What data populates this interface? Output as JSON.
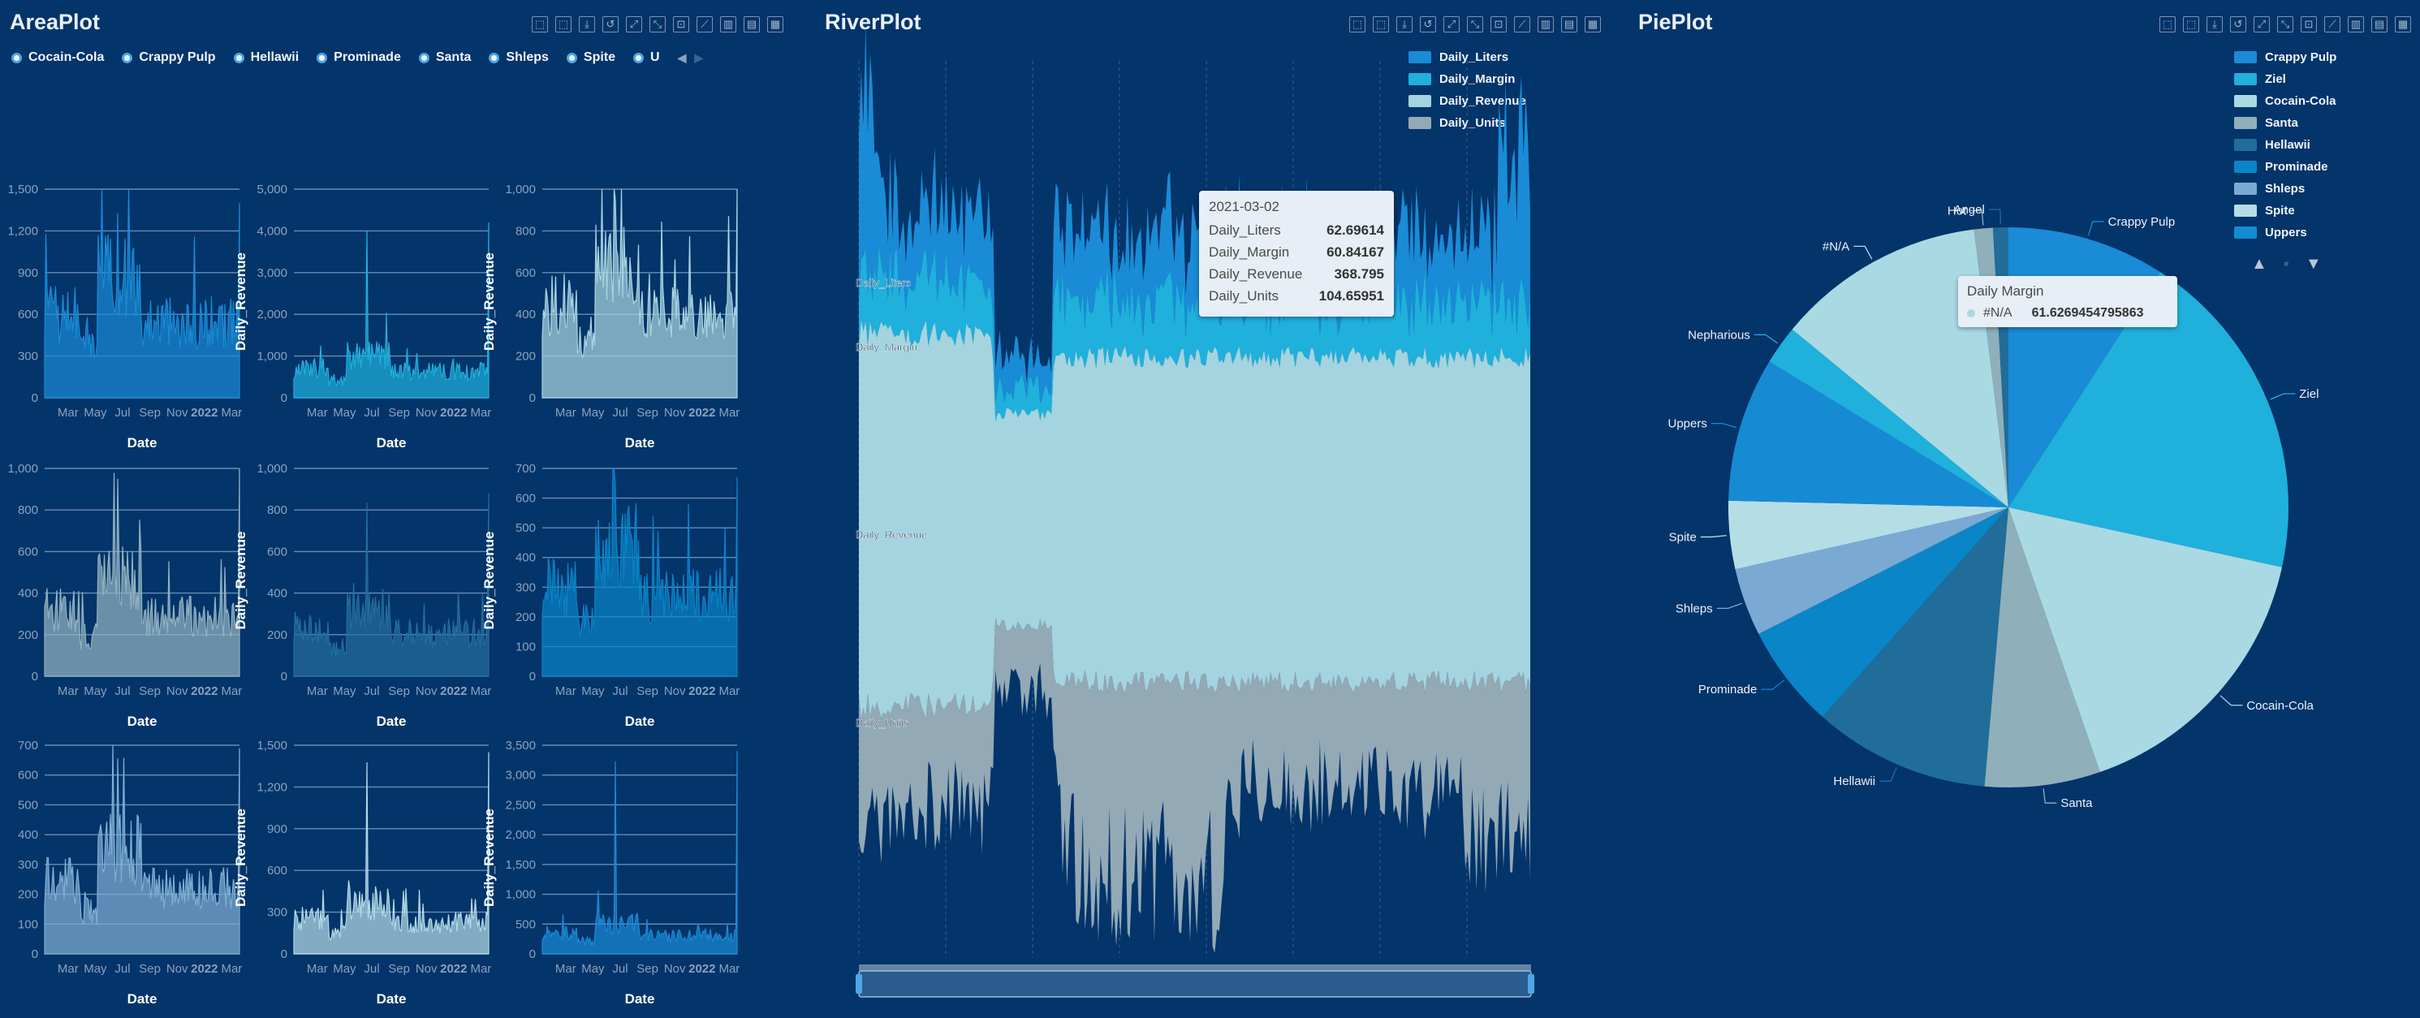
{
  "toolbar_icons": [
    "brush-rect-icon",
    "brush-polygon-icon",
    "save-icon",
    "restore-icon",
    "zoom-icon",
    "zoom-reset-icon",
    "select-icon",
    "line-icon",
    "bar-icon",
    "stack-icon",
    "tiled-icon"
  ],
  "area": {
    "title": "AreaPlot",
    "legend": [
      "Cocain-Cola",
      "Crappy Pulp",
      "Hellawii",
      "Prominade",
      "Santa",
      "Shleps",
      "Spite",
      "U"
    ],
    "xlabel": "Date",
    "ylabel": "Daily_Revenue",
    "xticks": [
      "Mar",
      "May",
      "Jul",
      "Sep",
      "Nov",
      "2022",
      "Mar"
    ],
    "charts": [
      {
        "yticks": [
          "0",
          "300",
          "600",
          "900",
          "1,200",
          "1,500"
        ],
        "ymax": 1500,
        "color": "#1a8bd6",
        "peak": 1400,
        "base": 600
      },
      {
        "yticks": [
          "0",
          "1,000",
          "2,000",
          "3,000",
          "4,000",
          "5,000"
        ],
        "ymax": 5000,
        "color": "#1fb0dc",
        "peak": 4200,
        "base": 700
      },
      {
        "yticks": [
          "0",
          "200",
          "400",
          "600",
          "800",
          "1,000"
        ],
        "ymax": 1000,
        "color": "#a9d6e1",
        "peak": 1000,
        "base": 450
      },
      {
        "yticks": [
          "0",
          "200",
          "400",
          "600",
          "800",
          "1,000"
        ],
        "ymax": 1000,
        "color": "#93b3c0",
        "peak": 1000,
        "base": 320
      },
      {
        "yticks": [
          "0",
          "200",
          "400",
          "600",
          "800",
          "1,000"
        ],
        "ymax": 1000,
        "color": "#246e9c",
        "peak": 880,
        "base": 230
      },
      {
        "yticks": [
          "0",
          "100",
          "200",
          "300",
          "400",
          "500",
          "600",
          "700"
        ],
        "ymax": 700,
        "color": "#0a84c8",
        "peak": 670,
        "base": 300
      },
      {
        "yticks": [
          "0",
          "100",
          "200",
          "300",
          "400",
          "500",
          "600",
          "700"
        ],
        "ymax": 700,
        "color": "#7fafd4",
        "peak": 690,
        "base": 240
      },
      {
        "yticks": [
          "0",
          "300",
          "600",
          "900",
          "1,200",
          "1,500"
        ],
        "ymax": 1500,
        "color": "#b3dbe6",
        "peak": 1450,
        "base": 250
      },
      {
        "yticks": [
          "0",
          "500",
          "1,000",
          "1,500",
          "2,000",
          "2,500",
          "3,000",
          "3,500"
        ],
        "ymax": 3500,
        "color": "#1a8bd6",
        "peak": 3400,
        "base": 350
      }
    ]
  },
  "river": {
    "title": "RiverPlot",
    "legend": [
      "Daily_Liters",
      "Daily_Margin",
      "Daily_Revenue",
      "Daily_Units"
    ],
    "colors": [
      "#1a8bd6",
      "#1fb0dc",
      "#a3d4df",
      "#93a9b5"
    ],
    "series_labels": [
      "Daily_Liters",
      "Daily_Margin",
      "Daily_Revenue",
      "Daily_Units"
    ],
    "tooltip": {
      "date": "2021-03-02",
      "rows": [
        {
          "name": "Daily_Liters",
          "value": "62.69614"
        },
        {
          "name": "Daily_Margin",
          "value": "60.84167"
        },
        {
          "name": "Daily_Revenue",
          "value": "368.795"
        },
        {
          "name": "Daily_Units",
          "value": "104.65951"
        }
      ]
    }
  },
  "pie": {
    "title": "PiePlot",
    "legend": [
      {
        "name": "Crappy Pulp",
        "color": "#1a8bd6"
      },
      {
        "name": "Ziel",
        "color": "#1fb0dc"
      },
      {
        "name": "Cocain-Cola",
        "color": "#a9d9e3"
      },
      {
        "name": "Santa",
        "color": "#8fb0ba"
      },
      {
        "name": "Hellawii",
        "color": "#206d9a"
      },
      {
        "name": "Prominade",
        "color": "#0a85c7"
      },
      {
        "name": "Shleps",
        "color": "#7aaad3"
      },
      {
        "name": "Spite",
        "color": "#b5dde6"
      },
      {
        "name": "Uppers",
        "color": "#168bd3"
      }
    ],
    "tooltip": {
      "title": "Daily Margin",
      "name": "#N/A",
      "value": "61.6269454795863"
    }
  },
  "chart_data": [
    {
      "type": "pie",
      "title": "PiePlot",
      "slices": [
        {
          "name": "Crappy Pulp",
          "value": 46.5,
          "color": "#1a8bd6"
        },
        {
          "name": "Ziel",
          "value": 98.5,
          "color": "#1fb0dc"
        },
        {
          "name": "Cocain-Cola",
          "value": 83.0,
          "color": "#a9d9e3"
        },
        {
          "name": "Santa",
          "value": 34.0,
          "color": "#8fb0ba"
        },
        {
          "name": "Hellawii",
          "value": 52.0,
          "color": "#206d9a"
        },
        {
          "name": "Prominade",
          "value": 30.5,
          "color": "#0a85c7"
        },
        {
          "name": "Shleps",
          "value": 20.0,
          "color": "#7aaad3"
        },
        {
          "name": "Spite",
          "value": 20.0,
          "color": "#b5dde6"
        },
        {
          "name": "Uppers",
          "value": 42.5,
          "color": "#168bd3"
        },
        {
          "name": "Nepharious",
          "value": 11.5,
          "color": "#1fb0dc"
        },
        {
          "name": "#N/A",
          "value": 61.6,
          "color": "#a9d9e3"
        },
        {
          "name": "Hot",
          "value": 5.5,
          "color": "#8fb0ba"
        },
        {
          "name": "Angel",
          "value": 4.5,
          "color": "#206d9a"
        }
      ]
    },
    {
      "type": "area",
      "title": "RiverPlot",
      "series": [
        {
          "name": "Daily_Liters"
        },
        {
          "name": "Daily_Margin"
        },
        {
          "name": "Daily_Revenue"
        },
        {
          "name": "Daily_Units"
        }
      ],
      "tooltip_point": {
        "x": "2021-03-02",
        "Daily_Liters": 62.69614,
        "Daily_Margin": 60.84167,
        "Daily_Revenue": 368.795,
        "Daily_Units": 104.65951
      }
    }
  ]
}
